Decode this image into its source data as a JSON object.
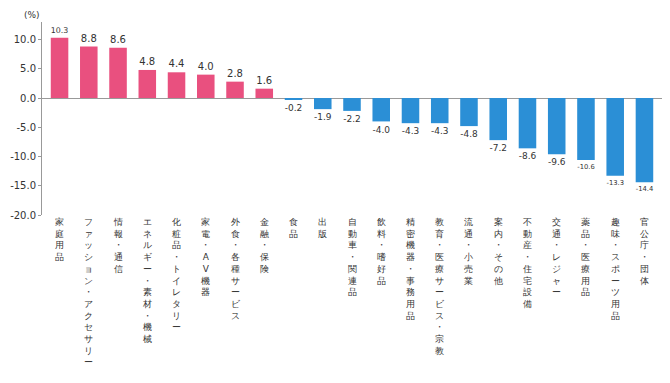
{
  "chart_data": {
    "type": "bar",
    "ylabel": "(%)",
    "categories": [
      "家庭用品",
      "ファッション・アクセサリー",
      "情報・通信",
      "エネルギー・素材・機械",
      "化粧品・トイレタリー",
      "家電・AV機器",
      "外食・各種サービス",
      "金融・保険",
      "食品",
      "出版",
      "自動車・関連品",
      "飲料・嗜好品",
      "精密機器・事務用品",
      "教育・医療サービス・宗教",
      "流通・小売業",
      "案内・その他",
      "不動産・住宅設備",
      "交通・レジャー",
      "薬品・医療用品",
      "趣味・スポーツ用品",
      "官公庁・団体"
    ],
    "values": [
      10.3,
      8.8,
      8.6,
      4.8,
      4.4,
      4.0,
      2.8,
      1.6,
      -0.2,
      -1.9,
      -2.2,
      -4.0,
      -4.3,
      -4.3,
      -4.8,
      -7.2,
      -8.6,
      -9.6,
      -10.6,
      -13.3,
      -14.4
    ],
    "value_labels": [
      "10.3",
      "8.8",
      "8.6",
      "4.8",
      "4.4",
      "4.0",
      "2.8",
      "1.6",
      "-0.2",
      "-1.9",
      "-2.2",
      "-4.0",
      "-4.3",
      "-4.3",
      "-4.8",
      "-7.2",
      "-8.6",
      "-9.6",
      "-10.6",
      "-13.3",
      "-14.4"
    ],
    "colors": [
      "#e9507f",
      "#e9507f",
      "#e9507f",
      "#e9507f",
      "#e9507f",
      "#e9507f",
      "#e9507f",
      "#e9507f",
      "#2b8fd6",
      "#2b8fd6",
      "#2b8fd6",
      "#2b8fd6",
      "#2b8fd6",
      "#2b8fd6",
      "#2b8fd6",
      "#2b8fd6",
      "#2b8fd6",
      "#2b8fd6",
      "#2b8fd6",
      "#2b8fd6",
      "#2b8fd6"
    ],
    "ylim": [
      -20,
      13
    ],
    "yticks": [
      {
        "value": -20,
        "label": "-20.0"
      },
      {
        "value": -15,
        "label": "-15.0"
      },
      {
        "value": -10,
        "label": "-10.0"
      },
      {
        "value": -5,
        "label": "-5.0"
      },
      {
        "value": 0,
        "label": "0.0"
      },
      {
        "value": 5,
        "label": "5.0"
      },
      {
        "value": 10,
        "label": "10.0"
      }
    ],
    "data_labels": true,
    "grid": false
  }
}
